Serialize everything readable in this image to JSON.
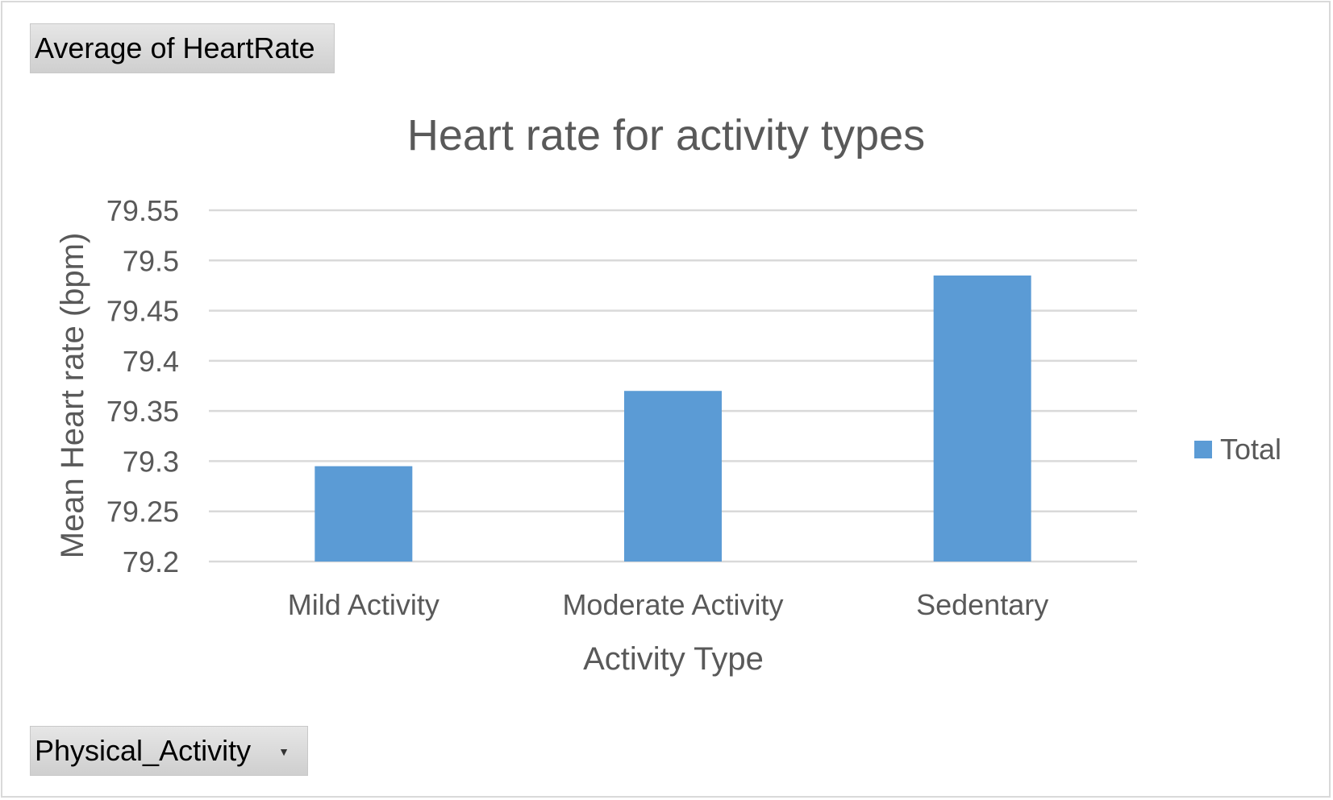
{
  "pivot": {
    "value_field_label": "Average  of HeartRate",
    "axis_field_label": "Physical_Activity",
    "dropdown_icon": "chevron-down-icon"
  },
  "chart_data": {
    "type": "bar",
    "title": "Heart rate for activity types",
    "xlabel": "Activity Type",
    "ylabel": "Mean Heart rate (bpm)",
    "categories": [
      "Mild Activity",
      "Moderate Activity",
      "Sedentary"
    ],
    "series": [
      {
        "name": "Total",
        "values": [
          79.295,
          79.37,
          79.485
        ],
        "color": "#5b9bd5"
      }
    ],
    "ylim": [
      79.2,
      79.55
    ],
    "yticks": [
      79.2,
      79.25,
      79.3,
      79.35,
      79.4,
      79.45,
      79.5,
      79.55
    ],
    "ytick_labels": [
      "79.2",
      "79.25",
      "79.3",
      "79.35",
      "79.4",
      "79.45",
      "79.5",
      "79.55"
    ],
    "grid": true,
    "legend": "right",
    "colors": {
      "grid": "#d9d9d9",
      "text": "#595959",
      "title": "#595959"
    }
  }
}
